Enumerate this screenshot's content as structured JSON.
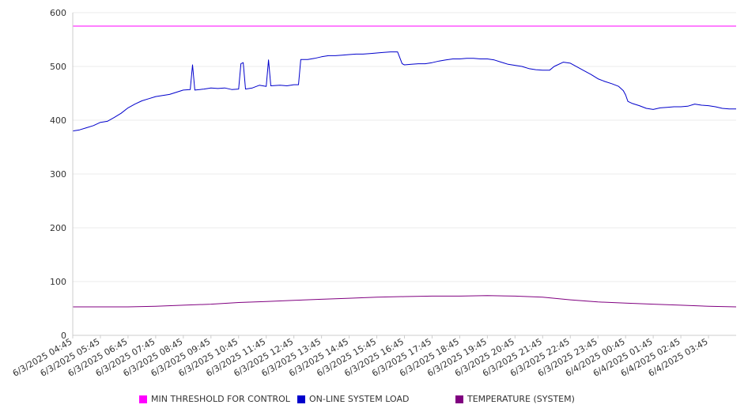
{
  "chart_data": {
    "type": "line",
    "ylim": [
      0,
      600
    ],
    "yticks": [
      0,
      100,
      200,
      300,
      400,
      500,
      600
    ],
    "x_ticks": [
      "6/3/2025 04:45",
      "6/3/2025 05:45",
      "6/3/2025 06:45",
      "6/3/2025 07:45",
      "6/3/2025 08:45",
      "6/3/2025 09:45",
      "6/3/2025 10:45",
      "6/3/2025 11:45",
      "6/3/2025 12:45",
      "6/3/2025 13:45",
      "6/3/2025 14:45",
      "6/3/2025 15:45",
      "6/3/2025 16:45",
      "6/3/2025 17:45",
      "6/3/2025 18:45",
      "6/3/2025 19:45",
      "6/3/2025 20:45",
      "6/3/2025 21:45",
      "6/3/2025 22:45",
      "6/3/2025 23:45",
      "6/4/2025 00:45",
      "6/4/2025 01:45",
      "6/4/2025 02:45",
      "6/4/2025 03:45"
    ],
    "x_start": "6/3/2025 04:45",
    "x_end": "6/4/2025 04:45",
    "grid": true,
    "legend_position": "bottom",
    "series": [
      {
        "name": "MIN THRESHOLD FOR CONTROL",
        "color": "#ff00ff",
        "points": [
          [
            "6/3/2025 04:45",
            575
          ],
          [
            "6/4/2025 04:45",
            575
          ]
        ]
      },
      {
        "name": "ON-LINE SYSTEM LOAD",
        "color": "#0000cc",
        "points": [
          [
            "6/3/2025 04:45",
            380
          ],
          [
            "6/3/2025 05:00",
            382
          ],
          [
            "6/3/2025 05:15",
            386
          ],
          [
            "6/3/2025 05:30",
            390
          ],
          [
            "6/3/2025 05:45",
            396
          ],
          [
            "6/3/2025 06:00",
            398
          ],
          [
            "6/3/2025 06:15",
            405
          ],
          [
            "6/3/2025 06:30",
            413
          ],
          [
            "6/3/2025 06:45",
            423
          ],
          [
            "6/3/2025 07:00",
            430
          ],
          [
            "6/3/2025 07:15",
            436
          ],
          [
            "6/3/2025 07:30",
            440
          ],
          [
            "6/3/2025 07:45",
            444
          ],
          [
            "6/3/2025 08:00",
            446
          ],
          [
            "6/3/2025 08:15",
            448
          ],
          [
            "6/3/2025 08:30",
            452
          ],
          [
            "6/3/2025 08:45",
            456
          ],
          [
            "6/3/2025 09:00",
            457
          ],
          [
            "6/3/2025 09:05",
            503
          ],
          [
            "6/3/2025 09:10",
            456
          ],
          [
            "6/3/2025 09:30",
            458
          ],
          [
            "6/3/2025 09:45",
            460
          ],
          [
            "6/3/2025 10:00",
            459
          ],
          [
            "6/3/2025 10:15",
            460
          ],
          [
            "6/3/2025 10:30",
            457
          ],
          [
            "6/3/2025 10:45",
            458
          ],
          [
            "6/3/2025 10:50",
            505
          ],
          [
            "6/3/2025 10:55",
            507
          ],
          [
            "6/3/2025 11:00",
            458
          ],
          [
            "6/3/2025 11:15",
            460
          ],
          [
            "6/3/2025 11:30",
            465
          ],
          [
            "6/3/2025 11:45",
            463
          ],
          [
            "6/3/2025 11:50",
            512
          ],
          [
            "6/3/2025 11:55",
            464
          ],
          [
            "6/3/2025 12:15",
            465
          ],
          [
            "6/3/2025 12:30",
            464
          ],
          [
            "6/3/2025 12:45",
            466
          ],
          [
            "6/3/2025 12:55",
            466
          ],
          [
            "6/3/2025 13:00",
            513
          ],
          [
            "6/3/2025 13:15",
            513
          ],
          [
            "6/3/2025 13:30",
            515
          ],
          [
            "6/3/2025 13:45",
            518
          ],
          [
            "6/3/2025 14:00",
            520
          ],
          [
            "6/3/2025 14:15",
            520
          ],
          [
            "6/3/2025 14:30",
            521
          ],
          [
            "6/3/2025 14:45",
            522
          ],
          [
            "6/3/2025 15:00",
            523
          ],
          [
            "6/3/2025 15:15",
            523
          ],
          [
            "6/3/2025 15:30",
            524
          ],
          [
            "6/3/2025 15:45",
            525
          ],
          [
            "6/3/2025 16:00",
            526
          ],
          [
            "6/3/2025 16:15",
            527
          ],
          [
            "6/3/2025 16:30",
            527
          ],
          [
            "6/3/2025 16:40",
            505
          ],
          [
            "6/3/2025 16:45",
            503
          ],
          [
            "6/3/2025 17:00",
            504
          ],
          [
            "6/3/2025 17:15",
            505
          ],
          [
            "6/3/2025 17:30",
            505
          ],
          [
            "6/3/2025 17:45",
            507
          ],
          [
            "6/3/2025 18:00",
            510
          ],
          [
            "6/3/2025 18:15",
            512
          ],
          [
            "6/3/2025 18:30",
            514
          ],
          [
            "6/3/2025 18:45",
            514
          ],
          [
            "6/3/2025 19:00",
            515
          ],
          [
            "6/3/2025 19:15",
            515
          ],
          [
            "6/3/2025 19:30",
            514
          ],
          [
            "6/3/2025 19:45",
            514
          ],
          [
            "6/3/2025 20:00",
            512
          ],
          [
            "6/3/2025 20:15",
            508
          ],
          [
            "6/3/2025 20:30",
            504
          ],
          [
            "6/3/2025 20:45",
            502
          ],
          [
            "6/3/2025 21:00",
            500
          ],
          [
            "6/3/2025 21:15",
            496
          ],
          [
            "6/3/2025 21:30",
            494
          ],
          [
            "6/3/2025 21:45",
            493
          ],
          [
            "6/3/2025 22:00",
            493
          ],
          [
            "6/3/2025 22:10",
            500
          ],
          [
            "6/3/2025 22:30",
            508
          ],
          [
            "6/3/2025 22:45",
            506
          ],
          [
            "6/3/2025 23:00",
            499
          ],
          [
            "6/3/2025 23:15",
            492
          ],
          [
            "6/3/2025 23:30",
            485
          ],
          [
            "6/3/2025 23:45",
            477
          ],
          [
            "6/4/2025 00:00",
            472
          ],
          [
            "6/4/2025 00:15",
            468
          ],
          [
            "6/4/2025 00:30",
            463
          ],
          [
            "6/4/2025 00:40",
            455
          ],
          [
            "6/4/2025 00:45",
            447
          ],
          [
            "6/4/2025 00:50",
            435
          ],
          [
            "6/4/2025 01:00",
            431
          ],
          [
            "6/4/2025 01:15",
            427
          ],
          [
            "6/4/2025 01:30",
            422
          ],
          [
            "6/4/2025 01:45",
            420
          ],
          [
            "6/4/2025 02:00",
            423
          ],
          [
            "6/4/2025 02:15",
            424
          ],
          [
            "6/4/2025 02:30",
            425
          ],
          [
            "6/4/2025 02:45",
            425
          ],
          [
            "6/4/2025 03:00",
            426
          ],
          [
            "6/4/2025 03:15",
            430
          ],
          [
            "6/4/2025 03:30",
            428
          ],
          [
            "6/4/2025 03:45",
            427
          ],
          [
            "6/4/2025 04:00",
            425
          ],
          [
            "6/4/2025 04:15",
            422
          ],
          [
            "6/4/2025 04:30",
            421
          ],
          [
            "6/4/2025 04:45",
            421
          ]
        ]
      },
      {
        "name": "TEMPERATURE (SYSTEM)",
        "color": "#800080",
        "points": [
          [
            "6/3/2025 04:45",
            53
          ],
          [
            "6/3/2025 06:45",
            53
          ],
          [
            "6/3/2025 07:45",
            54
          ],
          [
            "6/3/2025 08:45",
            56
          ],
          [
            "6/3/2025 09:45",
            58
          ],
          [
            "6/3/2025 10:45",
            61
          ],
          [
            "6/3/2025 11:45",
            63
          ],
          [
            "6/3/2025 12:45",
            65
          ],
          [
            "6/3/2025 13:45",
            67
          ],
          [
            "6/3/2025 14:45",
            69
          ],
          [
            "6/3/2025 15:45",
            71
          ],
          [
            "6/3/2025 16:45",
            72
          ],
          [
            "6/3/2025 17:45",
            73
          ],
          [
            "6/3/2025 18:45",
            73
          ],
          [
            "6/3/2025 19:45",
            74
          ],
          [
            "6/3/2025 20:45",
            73
          ],
          [
            "6/3/2025 21:45",
            71
          ],
          [
            "6/3/2025 22:45",
            66
          ],
          [
            "6/3/2025 23:45",
            62
          ],
          [
            "6/4/2025 00:45",
            60
          ],
          [
            "6/4/2025 01:45",
            58
          ],
          [
            "6/4/2025 02:45",
            56
          ],
          [
            "6/4/2025 03:45",
            54
          ],
          [
            "6/4/2025 04:45",
            53
          ]
        ]
      }
    ]
  }
}
